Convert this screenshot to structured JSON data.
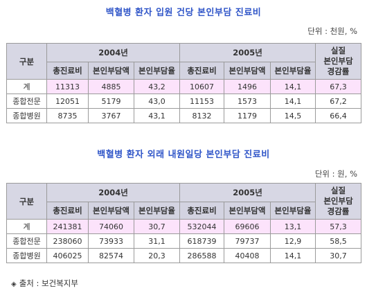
{
  "table1": {
    "title": "백혈병 환자 입원 건당 본인부담 진료비",
    "unit": "단위 : 천원, %",
    "header_group": "구분",
    "year_2004": "2004년",
    "year_2005": "2005년",
    "last_col": "실질\n본인부담\n경감률",
    "sub_headers": [
      "총진료비",
      "본인부담액",
      "본인부담율",
      "총진료비",
      "본인부담액",
      "본인부담율"
    ],
    "rows": [
      {
        "label": "계",
        "cells": [
          "11313",
          "4885",
          "43,2",
          "10607",
          "1496",
          "14,1",
          "67,3"
        ]
      },
      {
        "label": "종합전문",
        "cells": [
          "12051",
          "5179",
          "43,0",
          "11153",
          "1573",
          "14,1",
          "67,2"
        ]
      },
      {
        "label": "종합병원",
        "cells": [
          "8735",
          "3767",
          "43,1",
          "8132",
          "1179",
          "14,5",
          "66,4"
        ]
      }
    ]
  },
  "table2": {
    "title": "백혈병 환자 외래 내원일당 본인부담 진료비",
    "unit": "단위 : 원, %",
    "header_group": "구분",
    "year_2004": "2004년",
    "year_2005": "2005년",
    "last_col": "실질\n본인부담\n경감률",
    "sub_headers": [
      "총진료비",
      "본인부담액",
      "본인부담율",
      "총진료비",
      "본인부담액",
      "본인부담율"
    ],
    "rows": [
      {
        "label": "계",
        "cells": [
          "241381",
          "74060",
          "30,7",
          "532044",
          "69606",
          "13,1",
          "57,3"
        ]
      },
      {
        "label": "종합전문",
        "cells": [
          "238060",
          "73933",
          "31,1",
          "618739",
          "79737",
          "12,9",
          "58,5"
        ]
      },
      {
        "label": "종합병원",
        "cells": [
          "406025",
          "82574",
          "20,3",
          "286588",
          "40408",
          "14,1",
          "30,7"
        ]
      }
    ]
  },
  "source": {
    "marker": "◈",
    "text": "출처 : 보건복지부"
  }
}
